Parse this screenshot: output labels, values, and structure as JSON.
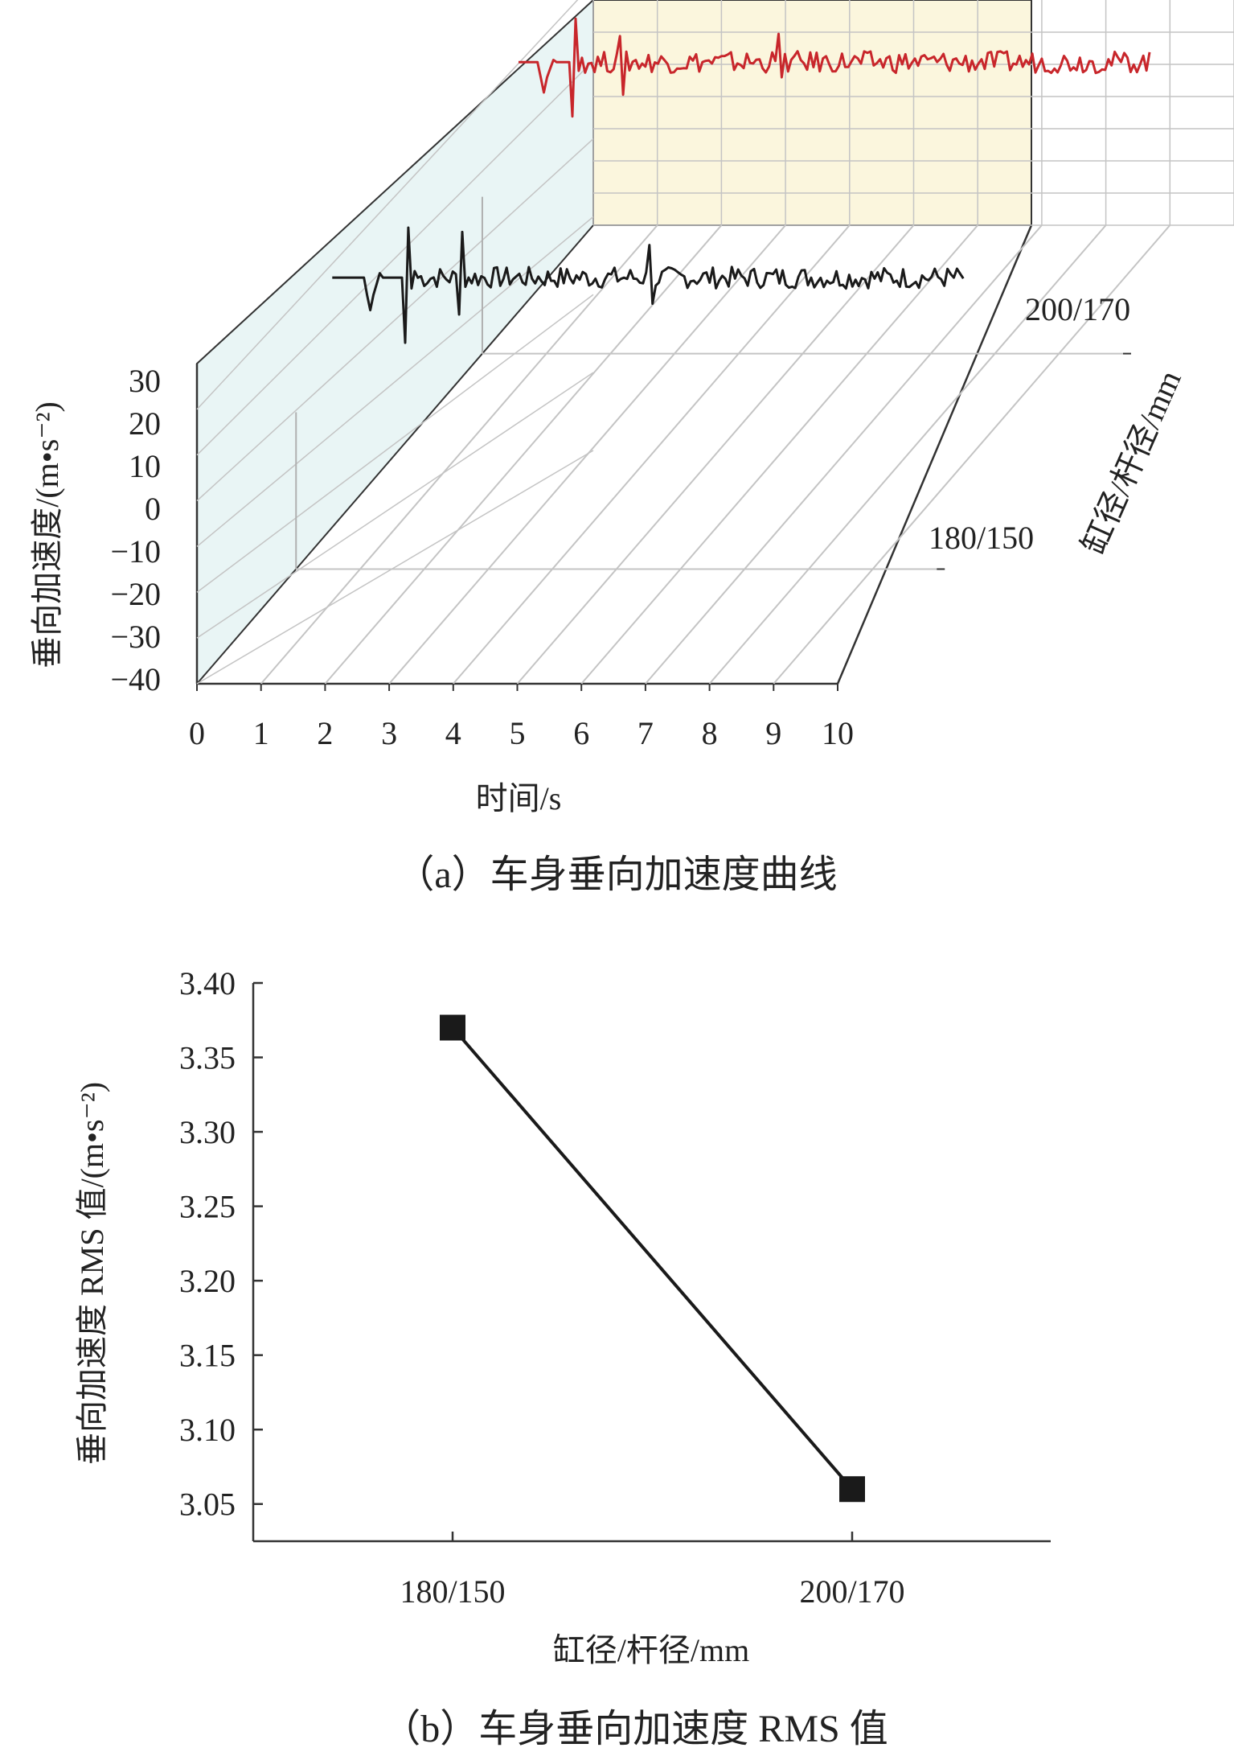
{
  "panel_a": {
    "caption": "（a）车身垂向加速度曲线",
    "y_axis_title": "垂向加速度/(m•s⁻²)",
    "x_axis_title": "时间/s",
    "depth_axis_title": "缸径/杆径/mm"
  },
  "panel_b": {
    "caption": "（b）车身垂向加速度 RMS 值",
    "y_axis_title": "垂向加速度 RMS 值/(m•s⁻²)",
    "x_axis_title": "缸径/杆径/mm"
  },
  "chart_data": [
    {
      "type": "line",
      "subtype": "3d-waterfall",
      "x": {
        "label": "时间/s",
        "range": [
          0,
          10
        ],
        "ticks": [
          "0",
          "1",
          "2",
          "3",
          "4",
          "5",
          "6",
          "7",
          "8",
          "9",
          "10"
        ]
      },
      "y": {
        "label": "垂向加速度/(m•s⁻²)",
        "range": [
          -40,
          30
        ],
        "ticks": [
          "30",
          "20",
          "10",
          "0",
          "−10",
          "−20",
          "−30",
          "−40"
        ]
      },
      "depth": {
        "label": "缸径/杆径/mm",
        "ticks": [
          "180/150",
          "200/170"
        ]
      },
      "grid": true,
      "series": [
        {
          "name": "180/150",
          "color": "#1a1a1a",
          "dt": 0.05,
          "t_end": 9.95,
          "points": [
            [
              0,
              0
            ],
            [
              0.5,
              0
            ],
            [
              0.55,
              -8
            ],
            [
              0.6,
              -15
            ],
            [
              0.65,
              -8
            ],
            [
              0.7,
              -3
            ],
            [
              0.75,
              2
            ],
            [
              1.1,
              0
            ],
            [
              1.15,
              -30
            ],
            [
              1.2,
              23
            ],
            [
              1.25,
              -5
            ],
            [
              1.3,
              3
            ]
          ],
          "events": [
            [
              1.15,
              -30
            ],
            [
              1.2,
              23
            ],
            [
              2.0,
              -17
            ],
            [
              2.05,
              21
            ],
            [
              5.0,
              15
            ],
            [
              5.05,
              -12
            ]
          ],
          "noise_amplitude": 5
        },
        {
          "name": "200/170",
          "color": "#c8262b",
          "dt": 0.05,
          "t_end": 9.95,
          "points": [
            [
              0,
              0
            ],
            [
              0.3,
              0
            ],
            [
              0.35,
              -7
            ],
            [
              0.4,
              -14
            ],
            [
              0.45,
              -7
            ],
            [
              0.5,
              -3
            ],
            [
              0.55,
              1
            ],
            [
              0.8,
              0
            ],
            [
              0.85,
              -25
            ],
            [
              0.9,
              20
            ],
            [
              0.95,
              -4
            ],
            [
              1.0,
              2
            ]
          ],
          "events": [
            [
              0.85,
              -25
            ],
            [
              0.9,
              20
            ],
            [
              1.6,
              12
            ],
            [
              1.65,
              -15
            ],
            [
              4.1,
              13
            ],
            [
              4.15,
              -7
            ]
          ],
          "noise_amplitude": 5
        }
      ]
    },
    {
      "type": "line",
      "title": "",
      "categories": [
        "180/150",
        "200/170"
      ],
      "values": [
        3.37,
        3.06
      ],
      "xlabel": "缸径/杆径/mm",
      "ylabel": "垂向加速度 RMS 值/(m•s⁻²)",
      "ylim": [
        3.025,
        3.4
      ],
      "yticks": [
        "3.40",
        "3.35",
        "3.30",
        "3.25",
        "3.20",
        "3.15",
        "3.10",
        "3.05"
      ],
      "marker": "square",
      "line_color": "#1a1a1a"
    }
  ]
}
